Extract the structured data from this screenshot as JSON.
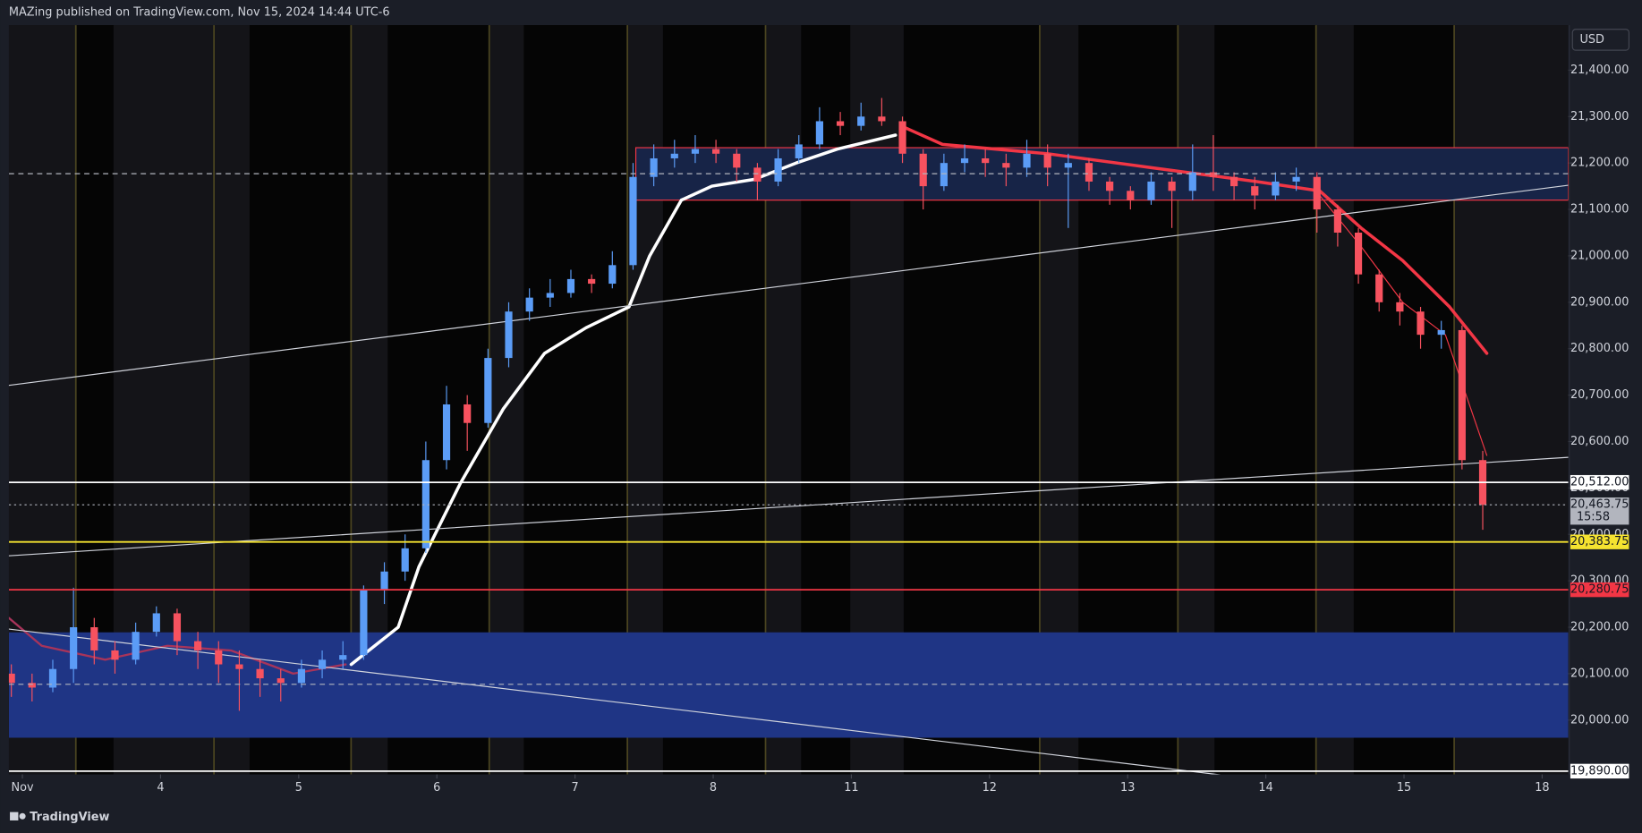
{
  "chart_data": {
    "type": "candlestick",
    "title": "MAZing published on TradingView.com, Nov 15, 2024 14:44 UTC-6",
    "currency": "USD",
    "footer": "TradingView",
    "xlim": [
      -0.098,
      11.189
    ],
    "ylim": [
      19883,
      21497
    ],
    "xticks": [
      {
        "value": 0,
        "label": "Nov"
      },
      {
        "value": 1,
        "label": "4"
      },
      {
        "value": 2,
        "label": "5"
      },
      {
        "value": 3,
        "label": "6"
      },
      {
        "value": 4,
        "label": "7"
      },
      {
        "value": 5,
        "label": "8"
      },
      {
        "value": 6,
        "label": "11"
      },
      {
        "value": 7,
        "label": "12"
      },
      {
        "value": 8,
        "label": "13"
      },
      {
        "value": 9,
        "label": "14"
      },
      {
        "value": 10,
        "label": "15"
      },
      {
        "value": 11,
        "label": "18"
      }
    ],
    "yticks": [
      {
        "value": 20000,
        "label": "20,000.00"
      },
      {
        "value": 20100,
        "label": "20,100.00"
      },
      {
        "value": 20200,
        "label": "20,200.00"
      },
      {
        "value": 20300,
        "label": "20,300.00"
      },
      {
        "value": 20400,
        "label": "20,400.00"
      },
      {
        "value": 20500,
        "label": "20,500.00"
      },
      {
        "value": 20600,
        "label": "20,600.00"
      },
      {
        "value": 20700,
        "label": "20,700.00"
      },
      {
        "value": 20800,
        "label": "20,800.00"
      },
      {
        "value": 20900,
        "label": "20,900.00"
      },
      {
        "value": 21000,
        "label": "21,000.00"
      },
      {
        "value": 21100,
        "label": "21,100.00"
      },
      {
        "value": 21200,
        "label": "21,200.00"
      },
      {
        "value": 21300,
        "label": "21,300.00"
      },
      {
        "value": 21400,
        "label": "21,400.00"
      }
    ],
    "up_color": "#5b9cf6",
    "down_color": "#f7525f",
    "candles": {
      "x": [
        -0.08,
        0.07,
        0.22,
        0.37,
        0.52,
        0.67,
        0.82,
        0.97,
        1.12,
        1.27,
        1.42,
        1.57,
        1.72,
        1.87,
        2.02,
        2.17,
        2.32,
        2.47,
        2.62,
        2.77,
        2.92,
        3.07,
        3.22,
        3.37,
        3.52,
        3.67,
        3.82,
        3.97,
        4.12,
        4.27,
        4.42,
        4.57,
        4.72,
        4.87,
        5.02,
        5.17,
        5.32,
        5.47,
        5.62,
        5.77,
        5.92,
        6.07,
        6.22,
        6.37,
        6.52,
        6.67,
        6.82,
        6.97,
        7.12,
        7.27,
        7.42,
        7.57,
        7.72,
        7.87,
        8.02,
        8.17,
        8.32,
        8.47,
        8.62,
        8.77,
        8.92,
        9.07,
        9.22,
        9.37,
        9.52,
        9.67,
        9.82,
        9.97,
        10.12,
        10.27,
        10.42,
        10.57
      ],
      "open": [
        20100,
        20080,
        20070,
        20110,
        20200,
        20150,
        20130,
        20190,
        20230,
        20170,
        20150,
        20120,
        20110,
        20090,
        20080,
        20110,
        20130,
        20140,
        20280,
        20320,
        20370,
        20560,
        20680,
        20640,
        20780,
        20880,
        20910,
        20920,
        20950,
        20940,
        20980,
        21170,
        21210,
        21220,
        21230,
        21220,
        21190,
        21160,
        21210,
        21240,
        21290,
        21280,
        21300,
        21290,
        21220,
        21150,
        21200,
        21210,
        21200,
        21190,
        21220,
        21190,
        21200,
        21160,
        21140,
        21120,
        21160,
        21140,
        21180,
        21170,
        21150,
        21130,
        21160,
        21170,
        21100,
        21050,
        20960,
        20900,
        20880,
        20830,
        20840,
        20560
      ],
      "high": [
        20120,
        20100,
        20130,
        20285,
        20220,
        20170,
        20210,
        20245,
        20240,
        20190,
        20170,
        20150,
        20130,
        20110,
        20130,
        20150,
        20170,
        20290,
        20340,
        20400,
        20600,
        20720,
        20700,
        20800,
        20900,
        20930,
        20950,
        20970,
        20960,
        21010,
        21200,
        21240,
        21250,
        21260,
        21250,
        21230,
        21200,
        21230,
        21260,
        21320,
        21310,
        21330,
        21340,
        21300,
        21230,
        21220,
        21240,
        21230,
        21220,
        21250,
        21240,
        21220,
        21210,
        21170,
        21150,
        21180,
        21170,
        21240,
        21260,
        21180,
        21170,
        21180,
        21190,
        21180,
        21110,
        21060,
        20970,
        20920,
        20890,
        20860,
        20850,
        20580
      ],
      "low": [
        20050,
        20040,
        20060,
        20080,
        20120,
        20100,
        20120,
        20180,
        20140,
        20110,
        20080,
        20020,
        20050,
        20040,
        20070,
        20090,
        20110,
        20130,
        20250,
        20300,
        20360,
        20540,
        20580,
        20630,
        20760,
        20860,
        20890,
        20910,
        20920,
        20930,
        20970,
        21150,
        21190,
        21200,
        21200,
        21160,
        21120,
        21150,
        21200,
        21230,
        21260,
        21270,
        21280,
        21200,
        21100,
        21140,
        21180,
        21170,
        21150,
        21170,
        21150,
        21060,
        21140,
        21110,
        21100,
        21110,
        21060,
        21120,
        21140,
        21120,
        21100,
        21120,
        21140,
        21050,
        21020,
        20940,
        20880,
        20850,
        20800,
        20800,
        20540,
        20410
      ],
      "close": [
        20080,
        20070,
        20110,
        20200,
        20150,
        20130,
        20190,
        20230,
        20170,
        20150,
        20120,
        20110,
        20090,
        20080,
        20110,
        20130,
        20140,
        20280,
        20320,
        20370,
        20560,
        20680,
        20640,
        20780,
        20880,
        20910,
        20920,
        20950,
        20940,
        20980,
        21170,
        21210,
        21220,
        21230,
        21220,
        21190,
        21160,
        21210,
        21240,
        21290,
        21280,
        21300,
        21290,
        21220,
        21150,
        21200,
        21210,
        21200,
        21190,
        21220,
        21190,
        21200,
        21160,
        21140,
        21120,
        21160,
        21140,
        21180,
        21170,
        21150,
        21130,
        21160,
        21170,
        21100,
        21050,
        20960,
        20900,
        20880,
        20830,
        20840,
        20560,
        20463.75
      ]
    },
    "zones": [
      {
        "x": [
          4.44,
          11.189
        ],
        "values": [
          21233,
          21120
        ],
        "fill": "#172447",
        "stroke": "#f23645"
      },
      {
        "x": [
          -0.098,
          11.189
        ],
        "values": [
          20189,
          19962
        ],
        "fill": "#1f3585"
      }
    ],
    "overlays": [
      {
        "color": "#ffffff",
        "width": 3,
        "x": [
          2.38,
          2.72,
          2.87,
          3.17,
          3.48,
          3.78,
          4.08,
          4.39,
          4.54,
          4.77,
          4.99,
          5.3,
          5.6,
          5.9,
          6.32
        ],
        "values": [
          20120,
          20200,
          20330,
          20510,
          20670,
          20790,
          20845,
          20890,
          21000,
          21120,
          21150,
          21165,
          21200,
          21230,
          21260
        ]
      },
      {
        "color": "#f23645",
        "width": 3,
        "x": [
          6.36,
          6.66,
          7.42,
          8.17,
          8.93,
          9.39,
          9.69,
          9.99,
          10.33,
          10.6
        ],
        "values": [
          21280,
          21240,
          21220,
          21190,
          21160,
          21140,
          21060,
          20990,
          20890,
          20790
        ]
      },
      {
        "color": "#a8345a",
        "width": 2,
        "x": [
          -0.098,
          0.14,
          0.6,
          1.05,
          1.51,
          1.96,
          2.34
        ],
        "values": [
          20220,
          20160,
          20130,
          20160,
          20150,
          20100,
          20120
        ]
      },
      {
        "color": "#f23645",
        "width": 1,
        "x": [
          9.39,
          9.69,
          9.99,
          10.3,
          10.6
        ],
        "values": [
          21130,
          21020,
          20900,
          20830,
          20570
        ]
      },
      {
        "color": "#d1d4dc",
        "width": 1,
        "x": [
          -0.098,
          11.189
        ],
        "values": [
          20721,
          21152
        ]
      },
      {
        "color": "#d1d4dc",
        "width": 1,
        "x": [
          -0.098,
          11.189
        ],
        "values": [
          20354,
          20566
        ]
      },
      {
        "color": "#d1d4dc",
        "width": 1,
        "x": [
          -0.098,
          8.78
        ],
        "values": [
          20196,
          19878
        ]
      }
    ],
    "levels": [
      {
        "value": 21177,
        "color": "#b2b5be",
        "style": "dashed"
      },
      {
        "value": 20077,
        "color": "#b2b5be",
        "style": "dashed"
      },
      {
        "value": 20512,
        "label": "20,512.00",
        "color": "#ffffff",
        "style": "solid"
      },
      {
        "value": 20463.75,
        "label": "20,463.75",
        "countdown": "15:58",
        "color": "#b2b5be",
        "style": "dotted"
      },
      {
        "value": 20383.75,
        "label": "20,383.75",
        "color": "#f5e330",
        "style": "solid"
      },
      {
        "value": 20280.75,
        "label": "20,280.75",
        "color": "#f23645",
        "style": "solid"
      },
      {
        "value": 19890,
        "label": "19,890.00",
        "color": "#ffffff",
        "style": "solid"
      }
    ]
  }
}
